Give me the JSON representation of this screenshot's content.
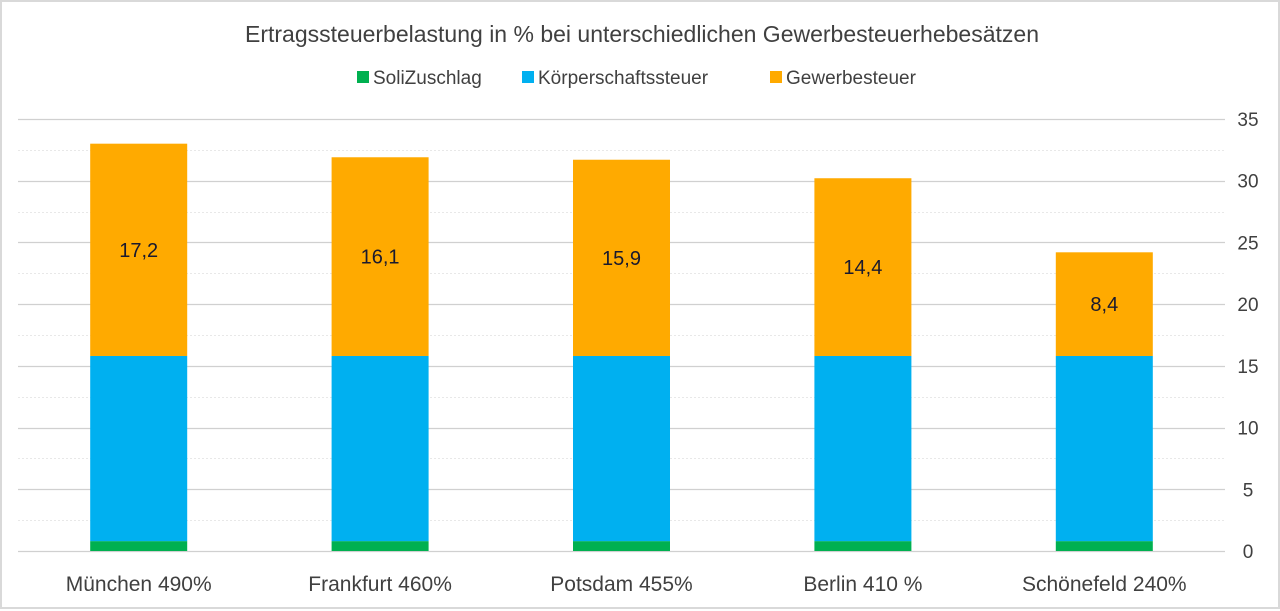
{
  "chart_data": {
    "type": "bar",
    "stacked": true,
    "title": "Ertragssteuerbelastung in % bei unterschiedlichen Gewerbesteuerhebesätzen",
    "xlabel": "",
    "ylabel": "",
    "categories": [
      "München 490%",
      "Frankfurt 460%",
      "Potsdam 455%",
      "Berlin 410 %",
      "Schönefeld 240%"
    ],
    "series": [
      {
        "name": "SoliZuschlag",
        "color": "#00b050",
        "values": [
          0.8,
          0.8,
          0.8,
          0.8,
          0.8
        ],
        "show_labels": false
      },
      {
        "name": "Körperschaftssteuer",
        "color": "#00b0f0",
        "values": [
          15,
          15,
          15,
          15,
          15
        ],
        "show_labels": false
      },
      {
        "name": "Gewerbesteuer",
        "color": "#ffaa00",
        "values": [
          17.2,
          16.1,
          15.9,
          14.4,
          8.4
        ],
        "show_labels": true,
        "labels": [
          "17,2",
          "16,1",
          "15,9",
          "14,4",
          "8,4"
        ]
      }
    ],
    "ylim": [
      0,
      35
    ],
    "yticks": [
      0,
      5,
      10,
      15,
      20,
      25,
      30,
      35
    ],
    "ytick_labels": [
      "0",
      "5",
      "10",
      "15",
      "20",
      "25",
      "30",
      "35"
    ],
    "y_axis_side": "right",
    "grid": true,
    "minor_grid": true,
    "legend_position": "top-center"
  }
}
